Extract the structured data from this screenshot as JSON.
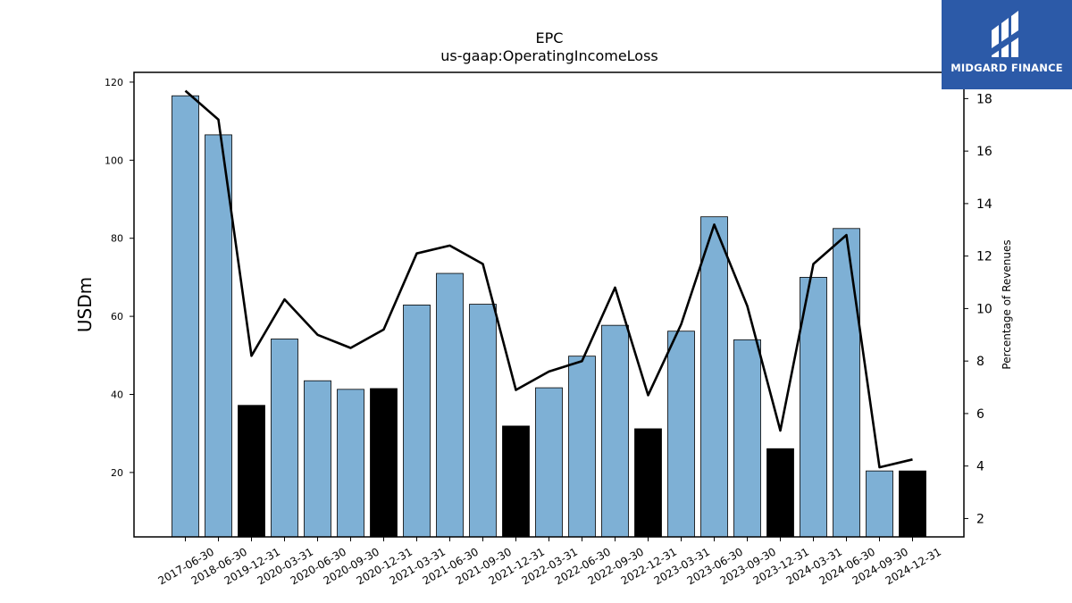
{
  "chart_data": {
    "type": "bar",
    "title": "EPC",
    "subtitle": "us-gaap:OperatingIncomeLoss",
    "ylabel": "USDm",
    "y2label": "Percentage of Revenues",
    "ylim": [
      3.5,
      122.5
    ],
    "y2lim": [
      1.3,
      19.0
    ],
    "yticks": [
      20,
      40,
      60,
      80,
      100,
      120
    ],
    "y2ticks": [
      2,
      4,
      6,
      8,
      10,
      12,
      14,
      16,
      18
    ],
    "categories": [
      "2017-06-30",
      "2018-06-30",
      "2019-12-31",
      "2020-03-31",
      "2020-06-30",
      "2020-09-30",
      "2020-12-31",
      "2021-03-31",
      "2021-06-30",
      "2021-09-30",
      "2021-12-31",
      "2022-03-31",
      "2022-06-30",
      "2022-09-30",
      "2022-12-31",
      "2023-03-31",
      "2023-06-30",
      "2023-09-30",
      "2023-12-31",
      "2024-03-31",
      "2024-06-30",
      "2024-09-30",
      "2024-12-31"
    ],
    "series": [
      {
        "values": [
          116.5,
          106.5,
          37.2,
          54.2,
          43.5,
          41.3,
          41.5,
          62.9,
          71.0,
          63.1,
          31.9,
          41.7,
          49.8,
          57.7,
          31.2,
          56.2,
          85.5,
          54.0,
          26.1,
          70.0,
          82.5,
          20.4,
          20.4
        ],
        "colors": [
          "#7eb0d5",
          "#7eb0d5",
          "#000000",
          "#7eb0d5",
          "#7eb0d5",
          "#7eb0d5",
          "#000000",
          "#7eb0d5",
          "#7eb0d5",
          "#7eb0d5",
          "#000000",
          "#7eb0d5",
          "#7eb0d5",
          "#7eb0d5",
          "#000000",
          "#7eb0d5",
          "#7eb0d5",
          "#7eb0d5",
          "#000000",
          "#7eb0d5",
          "#7eb0d5",
          "#7eb0d5",
          "#000000"
        ]
      },
      {
        "type": "line",
        "axis": "right",
        "color": "#000000",
        "values": [
          18.3,
          17.2,
          8.2,
          10.35,
          9.0,
          8.5,
          9.2,
          12.1,
          12.4,
          11.7,
          6.9,
          7.6,
          8.0,
          10.8,
          6.7,
          9.4,
          13.2,
          10.1,
          5.35,
          11.7,
          12.8,
          3.95,
          4.25
        ]
      }
    ],
    "grid": false,
    "legend": "none"
  },
  "logo": {
    "text": "MIDGARD FINANCE"
  },
  "colors": {
    "bar": "#7eb0d5",
    "highlight": "#000000",
    "logo_bg": "#2c5aa8"
  }
}
